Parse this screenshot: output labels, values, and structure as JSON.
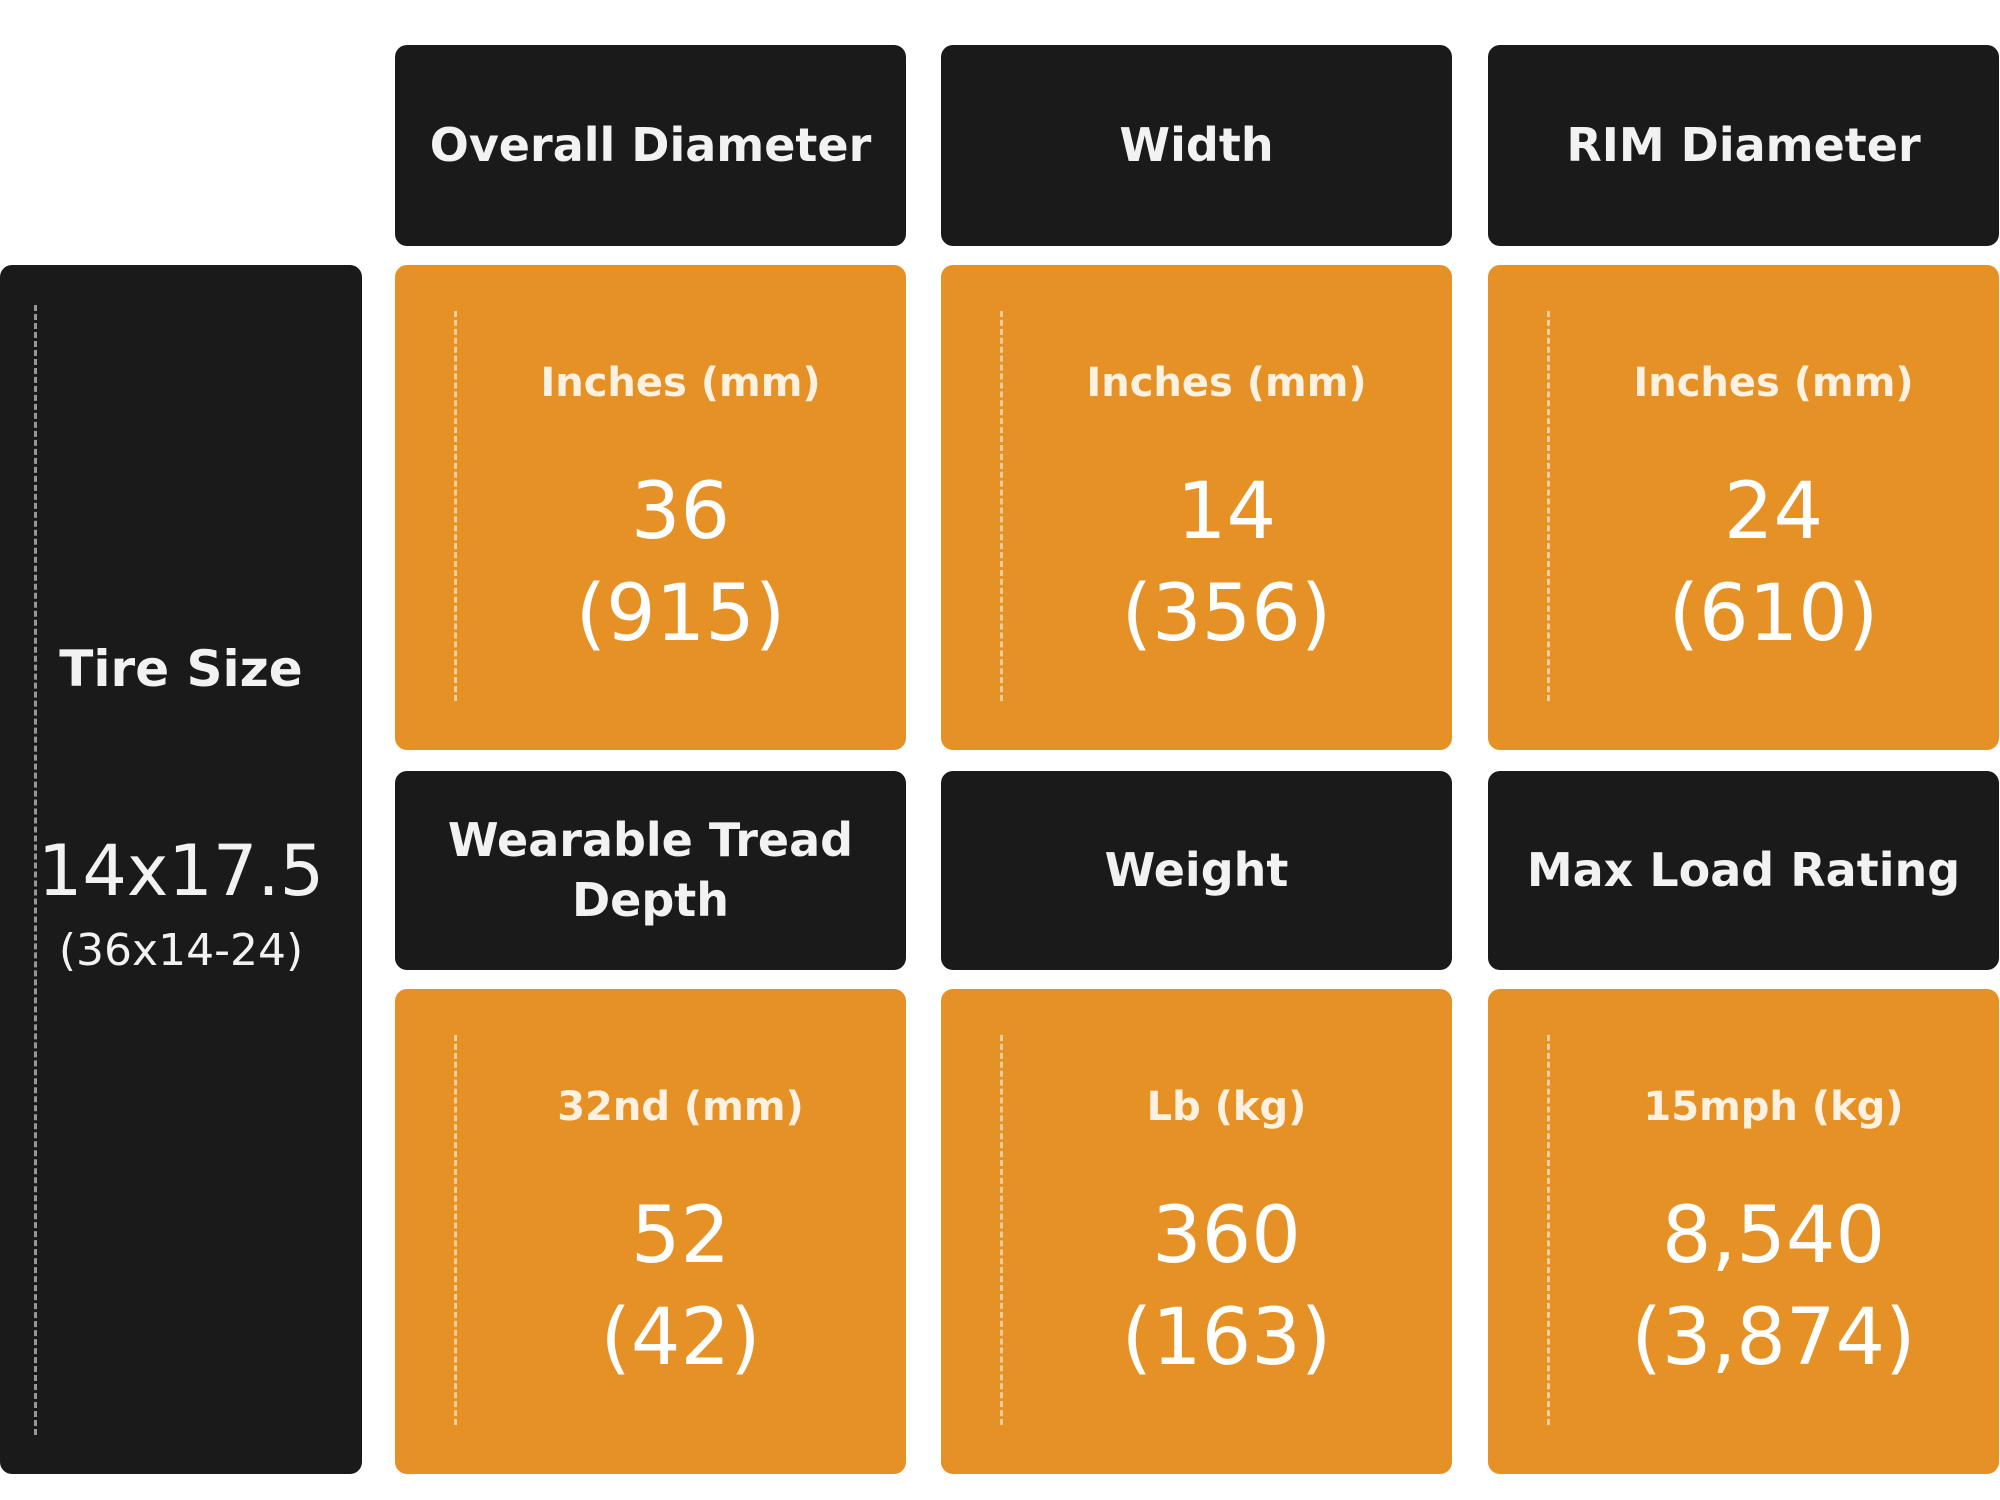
{
  "tire_size": {
    "label": "Tire Size",
    "value": "14x17.5",
    "alt": "(36x14-24)"
  },
  "cards": [
    {
      "header": "Overall Diameter",
      "unit": "Inches (mm)",
      "value": "36",
      "alt": "(915)"
    },
    {
      "header": "Width",
      "unit": "Inches (mm)",
      "value": "14",
      "alt": "(356)"
    },
    {
      "header": "RIM Diameter",
      "unit": "Inches (mm)",
      "value": "24",
      "alt": "(610)"
    },
    {
      "header": "Wearable Tread Depth",
      "unit": "32nd (mm)",
      "value": "52",
      "alt": "(42)"
    },
    {
      "header": "Weight",
      "unit": "Lb (kg)",
      "value": "360",
      "alt": "(163)"
    },
    {
      "header": "Max Load Rating",
      "unit": "15mph (kg)",
      "value": "8,540",
      "alt": "(3,874)"
    }
  ]
}
